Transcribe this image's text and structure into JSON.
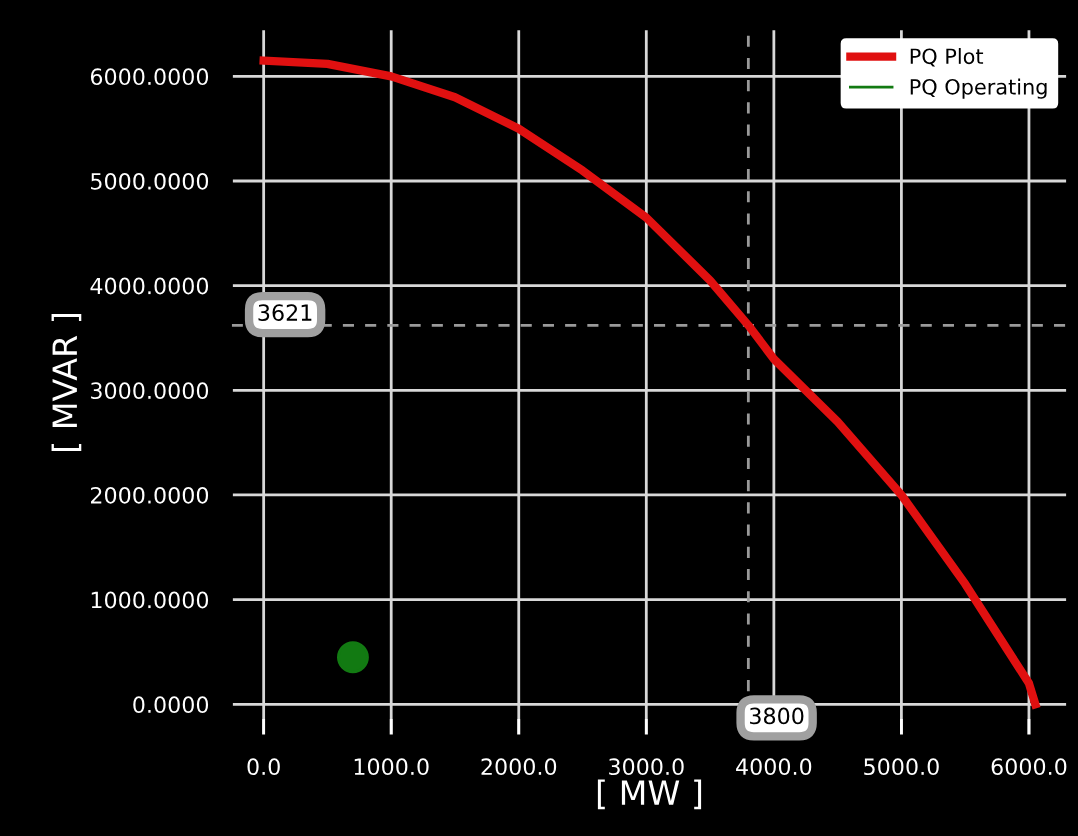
{
  "chart_data": {
    "type": "line",
    "xlabel": "[ MW ]",
    "ylabel": "[ MVAR ]",
    "series": [
      {
        "name": "PQ Plot",
        "color": "#e01010",
        "x": [
          0,
          500,
          1000,
          1500,
          2000,
          2500,
          3000,
          3500,
          3800,
          4000,
          4500,
          5000,
          5500,
          6000,
          6050
        ],
        "values": [
          6150,
          6120,
          6000,
          5800,
          5500,
          5100,
          4650,
          4050,
          3621,
          3300,
          2700,
          2000,
          1150,
          200,
          0
        ]
      },
      {
        "name": "PQ Operating",
        "type": "scatter",
        "color": "#127a12",
        "x": [
          700
        ],
        "values": [
          450
        ]
      }
    ],
    "xlim": [
      -250,
      6300
    ],
    "ylim": [
      -300,
      6450
    ],
    "xticks": [
      {
        "value": 0,
        "label": "0.0"
      },
      {
        "value": 1000,
        "label": "1000.0"
      },
      {
        "value": 2000,
        "label": "2000.0"
      },
      {
        "value": 3000,
        "label": "3000.0"
      },
      {
        "value": 4000,
        "label": "4000.0"
      },
      {
        "value": 5000,
        "label": "5000.0"
      },
      {
        "value": 6000,
        "label": "6000.0"
      }
    ],
    "yticks": [
      {
        "value": 0,
        "label": "0.0000"
      },
      {
        "value": 1000,
        "label": "1000.0000"
      },
      {
        "value": 2000,
        "label": "2000.0000"
      },
      {
        "value": 3000,
        "label": "3000.0000"
      },
      {
        "value": 4000,
        "label": "4000.0000"
      },
      {
        "value": 5000,
        "label": "5000.0000"
      },
      {
        "value": 6000,
        "label": "6000.0000"
      }
    ],
    "ref_lines": [
      {
        "axis": "x",
        "value": 3800,
        "label": "3800",
        "color": "#9a9a9a",
        "line_style": "dashed"
      },
      {
        "axis": "y",
        "value": 3621,
        "label": "3621",
        "color": "#9a9a9a",
        "line_style": "dashed"
      }
    ],
    "grid": true,
    "legend": "top right"
  }
}
